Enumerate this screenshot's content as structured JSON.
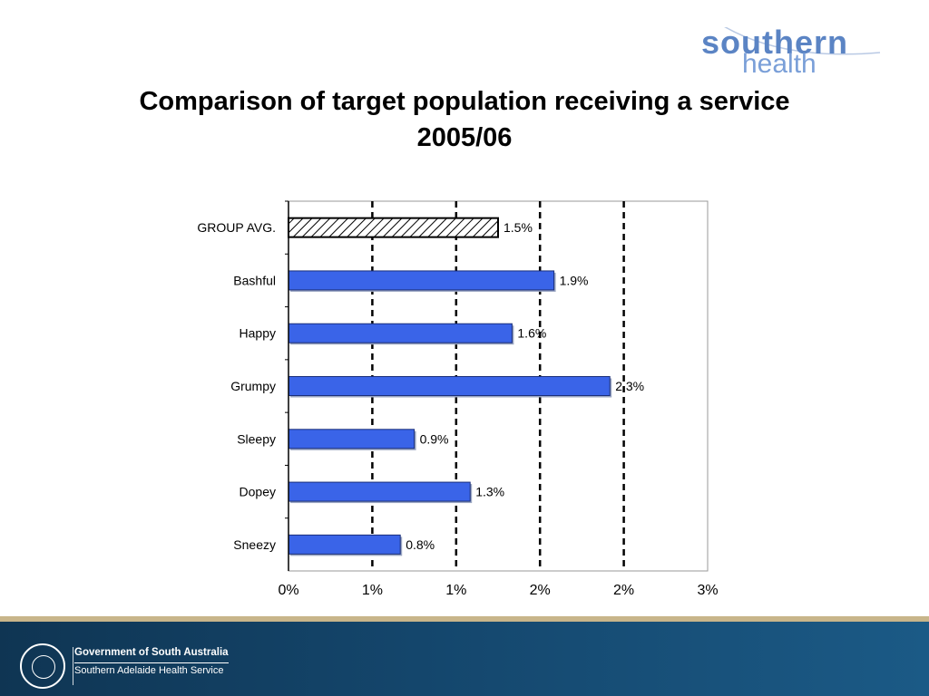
{
  "title": {
    "line1": "Comparison of target population receiving a service",
    "line2": "2005/06"
  },
  "logo": {
    "line1": "southern",
    "line2": "health"
  },
  "footer": {
    "org": "Government of South Australia",
    "service": "Southern Adelaide Health Service"
  },
  "colors": {
    "bar": "#3a64e8",
    "avg_pattern": "hatched",
    "footer_band": "#14466c",
    "footer_accent": "#c8b58a"
  },
  "chart_data": {
    "type": "bar",
    "orientation": "horizontal",
    "categories": [
      "GROUP AVG.",
      "Bashful",
      "Happy",
      "Grumpy",
      "Sleepy",
      "Dopey",
      "Sneezy"
    ],
    "values": [
      1.5,
      1.9,
      1.6,
      2.3,
      0.9,
      1.3,
      0.8
    ],
    "value_labels": [
      "1.5%",
      "1.9%",
      "1.6%",
      "2.3%",
      "0.9%",
      "1.3%",
      "0.8%"
    ],
    "xlim": [
      0,
      3
    ],
    "x_tick_labels": [
      "0%",
      "1%",
      "1%",
      "2%",
      "2%",
      "3%"
    ],
    "grid": "vertical dashed",
    "legend": "none"
  }
}
